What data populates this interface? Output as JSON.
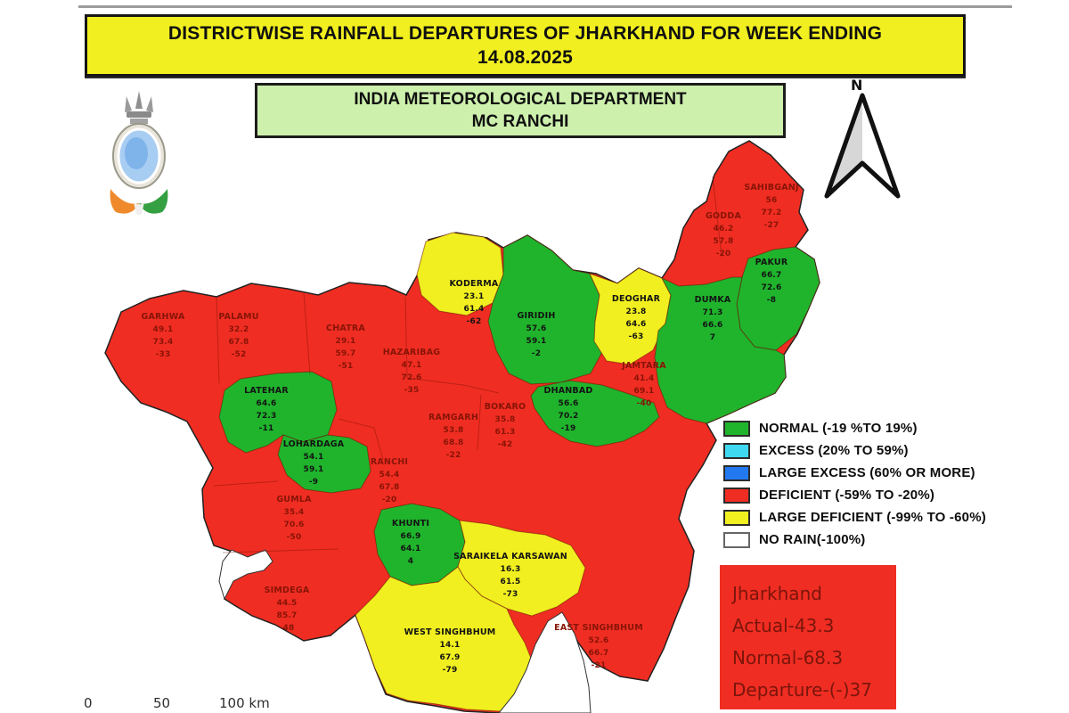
{
  "title": {
    "line1": "DISTRICTWISE RAINFALL DEPARTURES OF JHARKHAND FOR WEEK ENDING",
    "line2": "14.08.2025"
  },
  "department": {
    "line1": "INDIA METEOROLOGICAL DEPARTMENT",
    "line2": "MC RANCHI"
  },
  "north_label": "N",
  "legend": {
    "items": [
      {
        "label": "NORMAL (-19 %TO 19%)",
        "category": "normal"
      },
      {
        "label": "EXCESS (20% TO 59%)",
        "category": "excess"
      },
      {
        "label": "LARGE EXCESS (60% OR MORE)",
        "category": "large_excess"
      },
      {
        "label": "DEFICIENT (-59% TO -20%)",
        "category": "deficient"
      },
      {
        "label": "LARGE DEFICIENT (-99% TO -60%)",
        "category": "large_deficient"
      },
      {
        "label": "NO RAIN(-100%)",
        "category": "no_rain"
      }
    ]
  },
  "summary": {
    "region": "Jharkhand",
    "actual": "Actual-43.3",
    "normal": "Normal-68.3",
    "departure": "Departure-(-)37"
  },
  "scale_bar": {
    "ticks": [
      "0",
      "50",
      "100 km"
    ]
  },
  "map": {
    "colors": {
      "normal": "#1fb42c",
      "excess": "#3ed8f0",
      "large_excess": "#2279ef",
      "deficient": "#f02d22",
      "large_deficient": "#f1ef1f",
      "no_rain": "#ffffff"
    },
    "districts": [
      {
        "id": "garhwa",
        "name": "GARHWA",
        "actual": "49.1",
        "normal": "73.4",
        "departure": "-33",
        "category": "deficient"
      },
      {
        "id": "palamu",
        "name": "PALAMU",
        "actual": "32.2",
        "normal": "67.8",
        "departure": "-52",
        "category": "deficient"
      },
      {
        "id": "chatra",
        "name": "CHATRA",
        "actual": "29.1",
        "normal": "59.7",
        "departure": "-51",
        "category": "deficient"
      },
      {
        "id": "hazaribag",
        "name": "HAZARIBAG",
        "actual": "47.1",
        "normal": "72.6",
        "departure": "-35",
        "category": "deficient"
      },
      {
        "id": "koderma",
        "name": "KODERMA",
        "actual": "23.1",
        "normal": "61.4",
        "departure": "-62",
        "category": "large_deficient"
      },
      {
        "id": "giridih",
        "name": "GIRIDIH",
        "actual": "57.6",
        "normal": "59.1",
        "departure": "-2",
        "category": "normal"
      },
      {
        "id": "deoghar",
        "name": "DEOGHAR",
        "actual": "23.8",
        "normal": "64.6",
        "departure": "-63",
        "category": "large_deficient"
      },
      {
        "id": "godda",
        "name": "GODDA",
        "actual": "46.2",
        "normal": "57.8",
        "departure": "-20",
        "category": "deficient"
      },
      {
        "id": "sahibganj",
        "name": "SAHIBGANJ",
        "actual": "56",
        "normal": "77.2",
        "departure": "-27",
        "category": "deficient"
      },
      {
        "id": "pakur",
        "name": "PAKUR",
        "actual": "66.7",
        "normal": "72.6",
        "departure": "-8",
        "category": "normal"
      },
      {
        "id": "dumka",
        "name": "DUMKA",
        "actual": "71.3",
        "normal": "66.6",
        "departure": "7",
        "category": "normal"
      },
      {
        "id": "jamtara",
        "name": "JAMTARA",
        "actual": "41.4",
        "normal": "69.1",
        "departure": "-40",
        "category": "deficient"
      },
      {
        "id": "dhanbad",
        "name": "DHANBAD",
        "actual": "56.6",
        "normal": "70.2",
        "departure": "-19",
        "category": "normal"
      },
      {
        "id": "bokaro",
        "name": "BOKARO",
        "actual": "35.8",
        "normal": "61.3",
        "departure": "-42",
        "category": "deficient"
      },
      {
        "id": "ramgarh",
        "name": "RAMGARH",
        "actual": "53.8",
        "normal": "68.8",
        "departure": "-22",
        "category": "deficient"
      },
      {
        "id": "latehar",
        "name": "LATEHAR",
        "actual": "64.6",
        "normal": "72.3",
        "departure": "-11",
        "category": "normal"
      },
      {
        "id": "lohardaga",
        "name": "LOHARDAGA",
        "actual": "54.1",
        "normal": "59.1",
        "departure": "-9",
        "category": "normal"
      },
      {
        "id": "ranchi",
        "name": "RANCHI",
        "actual": "54.4",
        "normal": "67.8",
        "departure": "-20",
        "category": "deficient"
      },
      {
        "id": "gumla",
        "name": "GUMLA",
        "actual": "35.4",
        "normal": "70.6",
        "departure": "-50",
        "category": "deficient"
      },
      {
        "id": "khunti",
        "name": "KHUNTI",
        "actual": "66.9",
        "normal": "64.1",
        "departure": "4",
        "category": "normal"
      },
      {
        "id": "simdega",
        "name": "SIMDEGA",
        "actual": "44.5",
        "normal": "85.7",
        "departure": "-48",
        "category": "deficient"
      },
      {
        "id": "saraikela",
        "name": "SARAIKELA KARSAWAN",
        "actual": "16.3",
        "normal": "61.5",
        "departure": "-73",
        "category": "large_deficient"
      },
      {
        "id": "west_singhbhum",
        "name": "WEST SINGHBHUM",
        "actual": "14.1",
        "normal": "67.9",
        "departure": "-79",
        "category": "large_deficient"
      },
      {
        "id": "east_singhbhum",
        "name": "EAST SINGHBHUM",
        "actual": "52.6",
        "normal": "66.7",
        "departure": "-21",
        "category": "deficient"
      }
    ]
  }
}
